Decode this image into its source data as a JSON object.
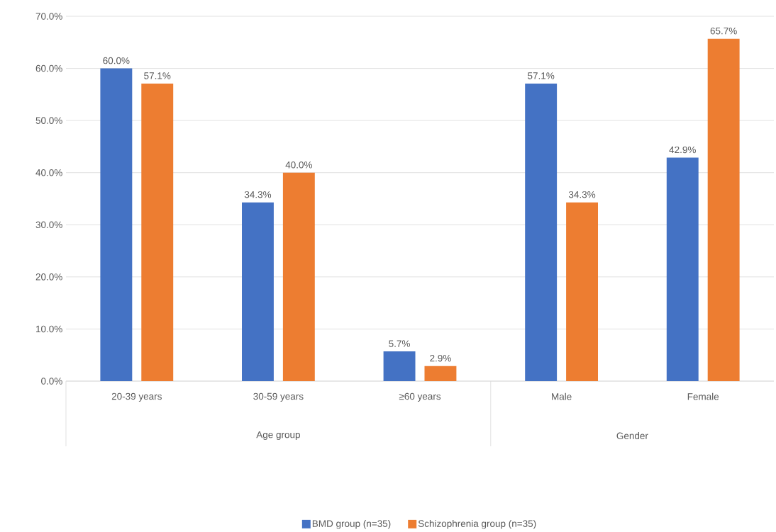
{
  "chart_data": {
    "type": "bar",
    "categories": [
      "20-39 years",
      "30-59 years",
      "≥60 years",
      "Male",
      "Female"
    ],
    "series": [
      {
        "name": "BMD group (n=35)",
        "color": "#4472c4",
        "values": [
          60.0,
          34.3,
          5.7,
          57.1,
          42.9
        ],
        "value_labels": [
          "60.0%",
          "34.3%",
          "5.7%",
          "57.1%",
          "42.9%"
        ]
      },
      {
        "name": "Schizophrenia group (n=35)",
        "color": "#ed7d31",
        "values": [
          57.1,
          40.0,
          2.9,
          34.3,
          65.7
        ],
        "value_labels": [
          "57.1%",
          "40.0%",
          "2.9%",
          "34.3%",
          "65.7%"
        ]
      }
    ],
    "annotations": [
      "Age group",
      "Gender"
    ],
    "ylim": [
      0,
      70
    ],
    "yticks": [
      {
        "value": 0,
        "label": "0.0%"
      },
      {
        "value": 10,
        "label": "10.0%"
      },
      {
        "value": 20,
        "label": "20.0%"
      },
      {
        "value": 30,
        "label": "30.0%"
      },
      {
        "value": 40,
        "label": "40.0%"
      },
      {
        "value": 50,
        "label": "50.0%"
      },
      {
        "value": 60,
        "label": "60.0%"
      },
      {
        "value": 70,
        "label": "70.0%"
      }
    ],
    "grid": "y",
    "legend": "bottom"
  }
}
